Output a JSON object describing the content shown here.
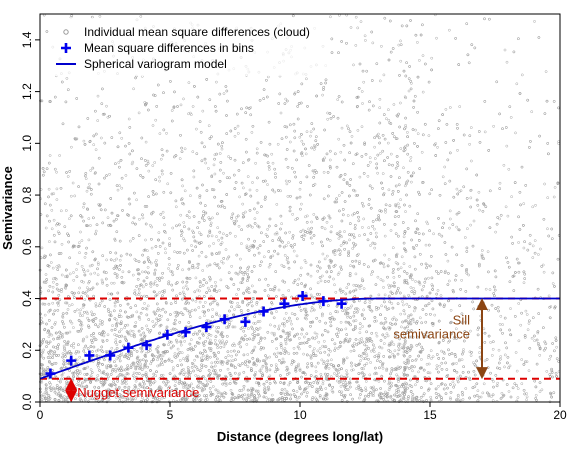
{
  "chart_data": {
    "type": "scatter",
    "xlabel": "Distance (degrees long/lat)",
    "ylabel": "Semivariance",
    "xlim": [
      0,
      20
    ],
    "ylim": [
      0,
      1.5
    ],
    "x_ticks": [
      "0",
      "5",
      "10",
      "15",
      "20"
    ],
    "y_ticks": [
      "0.0",
      "0.2",
      "0.4",
      "0.6",
      "0.8",
      "1.0",
      "1.2",
      "1.4"
    ],
    "x_tick_values": [
      0,
      5,
      10,
      15,
      20
    ],
    "y_tick_values": [
      0,
      0.2,
      0.4,
      0.6,
      0.8,
      1.0,
      1.2,
      1.4
    ],
    "legend": {
      "position": "top-left",
      "entries": [
        {
          "label": "Individual mean square differences (cloud)",
          "symbol": "open-circle",
          "color": "#999999"
        },
        {
          "label": "Mean square differences in bins",
          "symbol": "plus",
          "color": "#0000ee"
        },
        {
          "label": "Spherical variogram model",
          "symbol": "line",
          "color": "#0000cc"
        }
      ]
    },
    "cloud": {
      "description_color": "#a0a0a0",
      "x_range": [
        0,
        20
      ],
      "y_range": [
        0,
        1.5
      ],
      "dense_until_x": 14
    },
    "bins": {
      "name": "Mean square differences in bins",
      "color": "#0000ee",
      "x": [
        0.4,
        1.2,
        1.9,
        2.7,
        3.4,
        4.1,
        4.9,
        5.6,
        6.4,
        7.1,
        7.9,
        8.6,
        9.4,
        10.1,
        10.9,
        11.6
      ],
      "y": [
        0.11,
        0.16,
        0.18,
        0.18,
        0.21,
        0.22,
        0.26,
        0.27,
        0.29,
        0.32,
        0.31,
        0.35,
        0.38,
        0.41,
        0.39,
        0.38
      ]
    },
    "model": {
      "name": "Spherical variogram model",
      "type": "spherical",
      "color": "#0000cc",
      "nugget": 0.09,
      "sill": 0.4,
      "range": 13.0
    },
    "reference_lines": {
      "color": "#dd0000",
      "nugget_y": 0.09,
      "sill_y": 0.4
    },
    "annotations": {
      "nugget_label": "Nugget semivariance",
      "nugget_color": "#dd0000",
      "sill_label_line1": "Sill",
      "sill_label_line2": "semivariance",
      "sill_color": "#8b4513",
      "sill_arrow_x": 17.0
    }
  }
}
